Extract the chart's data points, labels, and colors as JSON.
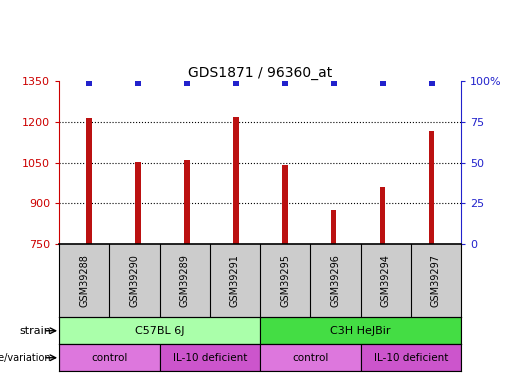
{
  "title": "GDS1871 / 96360_at",
  "samples": [
    "GSM39288",
    "GSM39290",
    "GSM39289",
    "GSM39291",
    "GSM39295",
    "GSM39296",
    "GSM39294",
    "GSM39297"
  ],
  "counts": [
    1213,
    1052,
    1060,
    1218,
    1040,
    876,
    960,
    1165
  ],
  "ylim_left": [
    750,
    1350
  ],
  "ylim_right": [
    0,
    100
  ],
  "yticks_left": [
    750,
    900,
    1050,
    1200,
    1350
  ],
  "yticks_right": [
    0,
    25,
    50,
    75,
    100
  ],
  "bar_color": "#bb1111",
  "dot_color": "#2222cc",
  "dot_pct": 99,
  "bar_width": 0.12,
  "strain_labels": [
    "C57BL 6J",
    "C3H HeJBir"
  ],
  "strain_color_light": "#aaffaa",
  "strain_color_dark": "#44dd44",
  "genotype_labels": [
    "control",
    "IL-10 deficient",
    "control",
    "IL-10 deficient"
  ],
  "genotype_color_1": "#dd77dd",
  "genotype_color_2": "#cc55cc",
  "left_axis_color": "#cc0000",
  "right_axis_color": "#2222cc",
  "sample_bg_color": "#cccccc"
}
